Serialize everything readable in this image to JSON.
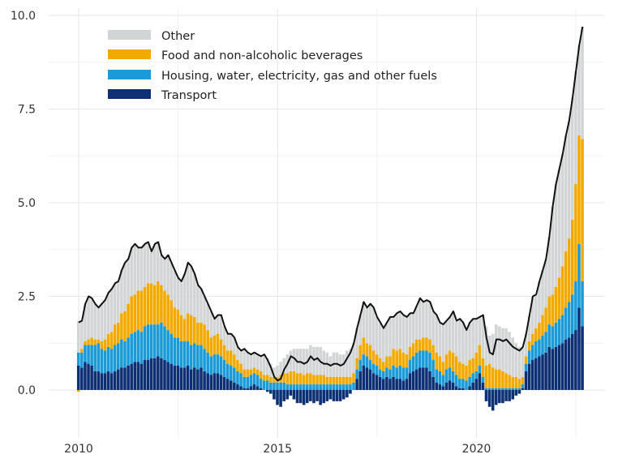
{
  "chart_data": {
    "type": "bar",
    "stacked": true,
    "title": "",
    "xlabel": "",
    "ylabel": "",
    "x_start": "2010-01",
    "frequency": "monthly",
    "x_end": "2022-09",
    "xlim": [
      2010,
      2022.9
    ],
    "ylim": [
      -1,
      10
    ],
    "yticks": [
      "0.0",
      "2.5",
      "5.0",
      "7.5",
      "10.0"
    ],
    "ytick_values": [
      0,
      2.5,
      5,
      7.5,
      10
    ],
    "xticks": [
      "2010",
      "2015",
      "2020"
    ],
    "xtick_values": [
      2010,
      2015,
      2020
    ],
    "grid": true,
    "legend_position": "top-left",
    "total_line": {
      "color": "#111111",
      "description_shown": false
    },
    "series": [
      {
        "name": "Transport",
        "color": "#0d2f74",
        "values": [
          0.65,
          0.6,
          0.75,
          0.7,
          0.65,
          0.5,
          0.5,
          0.45,
          0.45,
          0.5,
          0.45,
          0.5,
          0.55,
          0.6,
          0.6,
          0.65,
          0.7,
          0.75,
          0.75,
          0.7,
          0.8,
          0.8,
          0.85,
          0.85,
          0.9,
          0.85,
          0.8,
          0.75,
          0.7,
          0.65,
          0.65,
          0.6,
          0.6,
          0.65,
          0.55,
          0.6,
          0.55,
          0.6,
          0.5,
          0.45,
          0.4,
          0.45,
          0.45,
          0.4,
          0.35,
          0.3,
          0.25,
          0.2,
          0.15,
          0.1,
          0.05,
          0.05,
          0.1,
          0.15,
          0.1,
          0.05,
          0.0,
          -0.05,
          -0.1,
          -0.25,
          -0.4,
          -0.45,
          -0.3,
          -0.25,
          -0.15,
          -0.25,
          -0.35,
          -0.35,
          -0.4,
          -0.35,
          -0.3,
          -0.35,
          -0.3,
          -0.4,
          -0.35,
          -0.3,
          -0.25,
          -0.3,
          -0.3,
          -0.3,
          -0.25,
          -0.2,
          -0.1,
          0.0,
          0.3,
          0.5,
          0.65,
          0.6,
          0.55,
          0.45,
          0.4,
          0.35,
          0.3,
          0.35,
          0.3,
          0.35,
          0.3,
          0.3,
          0.25,
          0.3,
          0.45,
          0.5,
          0.55,
          0.6,
          0.6,
          0.6,
          0.5,
          0.35,
          0.2,
          0.15,
          0.1,
          0.2,
          0.25,
          0.2,
          0.1,
          0.05,
          0.05,
          0.0,
          0.1,
          0.2,
          0.3,
          0.45,
          0.2,
          -0.3,
          -0.45,
          -0.55,
          -0.4,
          -0.35,
          -0.35,
          -0.3,
          -0.3,
          -0.25,
          -0.15,
          -0.1,
          0.05,
          0.5,
          0.7,
          0.8,
          0.85,
          0.9,
          0.95,
          1.0,
          1.15,
          1.1,
          1.15,
          1.2,
          1.25,
          1.35,
          1.4,
          1.5,
          1.6,
          2.2,
          1.7
        ]
      },
      {
        "name": "Housing, water, electricity, gas and other fuels",
        "color": "#1a9bd7",
        "values": [
          0.35,
          0.4,
          0.45,
          0.5,
          0.55,
          0.7,
          0.75,
          0.65,
          0.6,
          0.65,
          0.65,
          0.7,
          0.7,
          0.75,
          0.7,
          0.75,
          0.8,
          0.8,
          0.85,
          0.85,
          0.9,
          0.95,
          0.9,
          0.9,
          0.85,
          0.95,
          0.9,
          0.85,
          0.8,
          0.75,
          0.75,
          0.7,
          0.7,
          0.65,
          0.65,
          0.65,
          0.65,
          0.6,
          0.6,
          0.55,
          0.5,
          0.5,
          0.5,
          0.5,
          0.45,
          0.4,
          0.4,
          0.4,
          0.35,
          0.35,
          0.3,
          0.3,
          0.3,
          0.3,
          0.3,
          0.25,
          0.25,
          0.25,
          0.2,
          0.2,
          0.2,
          0.2,
          0.2,
          0.15,
          0.15,
          0.15,
          0.15,
          0.15,
          0.15,
          0.15,
          0.15,
          0.15,
          0.15,
          0.15,
          0.15,
          0.15,
          0.15,
          0.15,
          0.15,
          0.15,
          0.15,
          0.15,
          0.15,
          0.2,
          0.25,
          0.3,
          0.3,
          0.3,
          0.25,
          0.25,
          0.25,
          0.2,
          0.2,
          0.25,
          0.25,
          0.3,
          0.3,
          0.35,
          0.35,
          0.3,
          0.35,
          0.4,
          0.45,
          0.45,
          0.45,
          0.45,
          0.5,
          0.45,
          0.35,
          0.35,
          0.3,
          0.35,
          0.35,
          0.3,
          0.3,
          0.25,
          0.25,
          0.25,
          0.25,
          0.25,
          0.2,
          0.2,
          0.15,
          0.05,
          0.05,
          0.05,
          0.05,
          0.05,
          0.05,
          0.05,
          0.05,
          0.05,
          0.05,
          0.05,
          0.1,
          0.2,
          0.35,
          0.4,
          0.45,
          0.45,
          0.5,
          0.55,
          0.6,
          0.6,
          0.65,
          0.7,
          0.75,
          0.85,
          0.95,
          1.05,
          1.3,
          1.7,
          1.2
        ]
      },
      {
        "name": "Food and non-alcoholic beverages",
        "color": "#f2a900",
        "values": [
          -0.05,
          0.1,
          0.1,
          0.15,
          0.2,
          0.15,
          0.1,
          0.2,
          0.3,
          0.35,
          0.45,
          0.55,
          0.55,
          0.7,
          0.8,
          0.9,
          1.0,
          1.0,
          1.05,
          1.1,
          1.05,
          1.1,
          1.1,
          1.05,
          1.15,
          1.0,
          0.95,
          0.95,
          0.9,
          0.8,
          0.75,
          0.7,
          0.6,
          0.75,
          0.8,
          0.7,
          0.6,
          0.6,
          0.65,
          0.6,
          0.5,
          0.5,
          0.55,
          0.45,
          0.4,
          0.35,
          0.4,
          0.35,
          0.3,
          0.25,
          0.2,
          0.2,
          0.15,
          0.15,
          0.15,
          0.2,
          0.15,
          0.15,
          0.15,
          0.15,
          0.15,
          0.2,
          0.25,
          0.3,
          0.35,
          0.35,
          0.3,
          0.3,
          0.25,
          0.3,
          0.3,
          0.25,
          0.25,
          0.25,
          0.25,
          0.2,
          0.2,
          0.2,
          0.2,
          0.2,
          0.2,
          0.2,
          0.2,
          0.25,
          0.3,
          0.4,
          0.45,
          0.35,
          0.4,
          0.35,
          0.3,
          0.3,
          0.25,
          0.3,
          0.35,
          0.45,
          0.45,
          0.45,
          0.4,
          0.35,
          0.35,
          0.35,
          0.35,
          0.3,
          0.35,
          0.35,
          0.35,
          0.4,
          0.45,
          0.4,
          0.35,
          0.4,
          0.45,
          0.5,
          0.5,
          0.45,
          0.4,
          0.4,
          0.45,
          0.4,
          0.5,
          0.55,
          0.5,
          0.6,
          0.65,
          0.55,
          0.5,
          0.5,
          0.45,
          0.4,
          0.35,
          0.3,
          0.3,
          0.25,
          0.2,
          0.2,
          0.25,
          0.3,
          0.35,
          0.45,
          0.55,
          0.65,
          0.75,
          0.85,
          0.95,
          1.1,
          1.3,
          1.5,
          1.7,
          2.0,
          2.6,
          2.9,
          3.8
        ]
      },
      {
        "name": "Other",
        "color": "#d2d5d6",
        "values": [
          0.85,
          0.75,
          1.0,
          1.15,
          1.05,
          0.95,
          0.85,
          1.0,
          1.05,
          1.1,
          1.15,
          1.1,
          1.1,
          1.15,
          1.3,
          1.2,
          1.3,
          1.35,
          1.15,
          1.15,
          1.15,
          1.1,
          0.85,
          1.1,
          1.05,
          0.8,
          0.85,
          1.05,
          1.0,
          1.0,
          0.85,
          0.9,
          1.2,
          1.35,
          1.3,
          1.15,
          1.0,
          0.9,
          0.75,
          0.7,
          0.7,
          0.45,
          0.5,
          0.65,
          0.5,
          0.45,
          0.45,
          0.45,
          0.35,
          0.35,
          0.55,
          0.45,
          0.4,
          0.4,
          0.4,
          0.4,
          0.55,
          0.45,
          0.35,
          0.25,
          0.3,
          0.35,
          0.4,
          0.5,
          0.55,
          0.6,
          0.65,
          0.65,
          0.7,
          0.65,
          0.75,
          0.75,
          0.75,
          0.75,
          0.65,
          0.65,
          0.55,
          0.65,
          0.65,
          0.6,
          0.6,
          0.7,
          0.75,
          0.8,
          0.8,
          0.8,
          0.95,
          0.95,
          1.1,
          1.15,
          1.0,
          0.95,
          0.9,
          0.9,
          1.05,
          0.85,
          1.0,
          1.0,
          1.0,
          1.0,
          0.9,
          0.8,
          0.9,
          1.1,
          0.95,
          1.0,
          1.0,
          0.9,
          1.0,
          0.9,
          1.0,
          0.9,
          0.9,
          1.1,
          0.95,
          1.15,
          1.1,
          0.95,
          1.0,
          1.05,
          0.9,
          0.75,
          1.15,
          1.05,
          0.75,
          0.9,
          1.2,
          1.15,
          1.15,
          1.2,
          1.15,
          1.05,
          0.9,
          0.85,
          0.8,
          0.6,
          0.7,
          1.0,
          0.9,
          1.1,
          1.2,
          1.3,
          1.6,
          2.35,
          2.75,
          2.9,
          3.0,
          3.1,
          3.15,
          3.25,
          3.0,
          2.4,
          3.0
        ]
      }
    ],
    "legend_order": [
      "Other",
      "Food and non-alcoholic beverages",
      "Housing, water, electricity, gas and other fuels",
      "Transport"
    ]
  }
}
